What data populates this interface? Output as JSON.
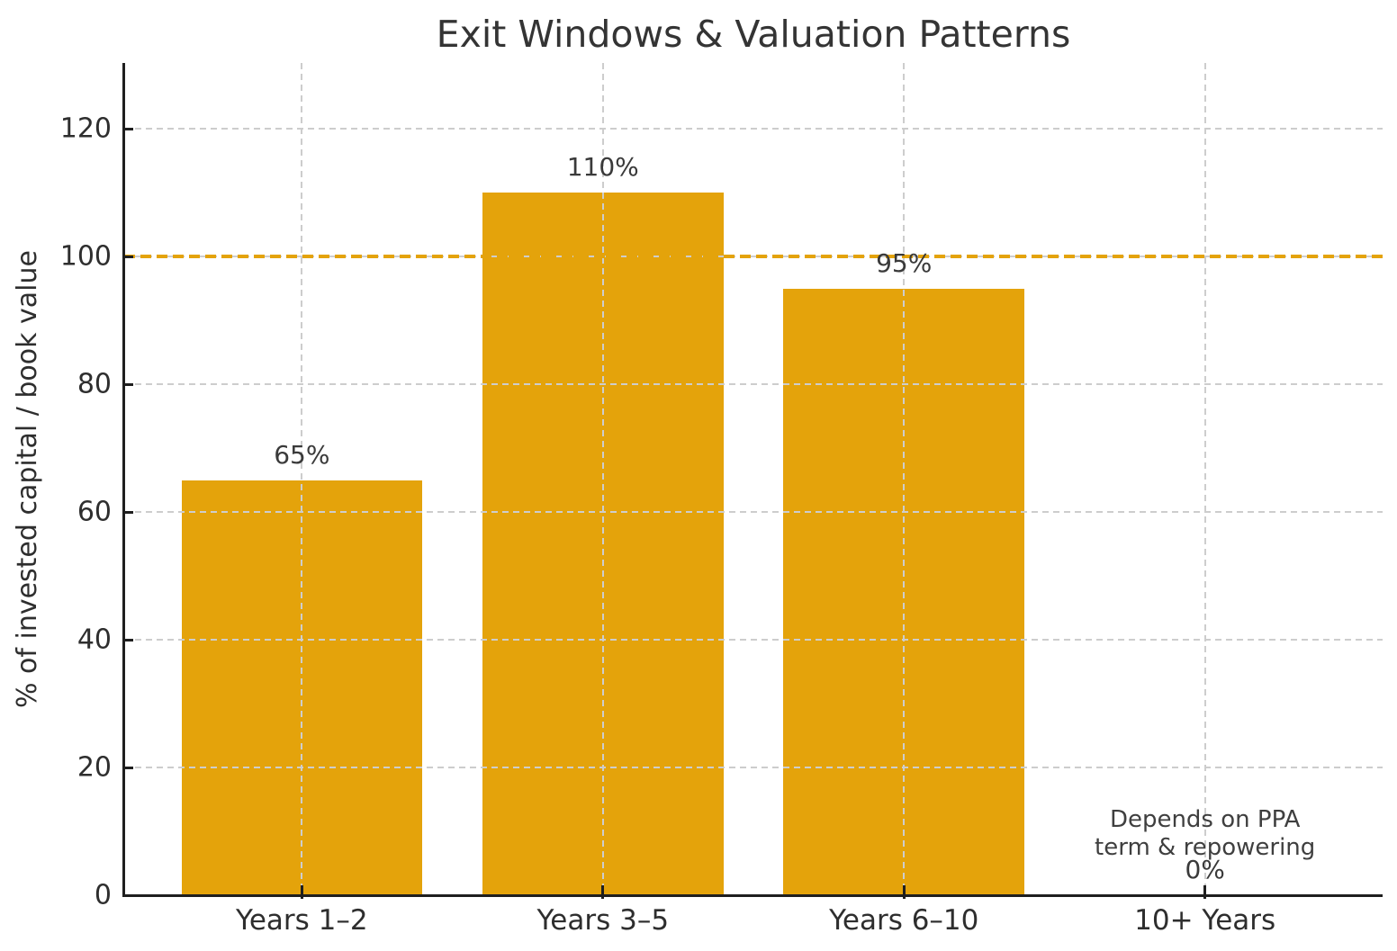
{
  "chart_data": {
    "type": "bar",
    "title": "Exit Windows & Valuation Patterns",
    "ylabel": "% of invested capital / book value",
    "xlabel": "",
    "categories": [
      "Years 1–2",
      "Years 3–5",
      "Years 6–10",
      "10+ Years"
    ],
    "values": [
      65,
      110,
      95,
      0
    ],
    "bar_value_labels": [
      "65%",
      "110%",
      "95%",
      "0%"
    ],
    "yticks": [
      0,
      20,
      40,
      60,
      80,
      100,
      120
    ],
    "ylim": [
      0,
      130.3
    ],
    "grid": true,
    "legend": "none",
    "reference_line": {
      "value": 100,
      "style": "dashed"
    },
    "annotation": {
      "text_lines": [
        "Depends on PPA",
        "term & repowering"
      ],
      "category": "10+ Years",
      "category_index": 3
    },
    "colors": {
      "bar": "#E4A30B",
      "reference_line": "#E4A30B",
      "grid": "#cdcdcd",
      "axis": "#1f1f1f",
      "text": "#2e2e2e"
    }
  }
}
